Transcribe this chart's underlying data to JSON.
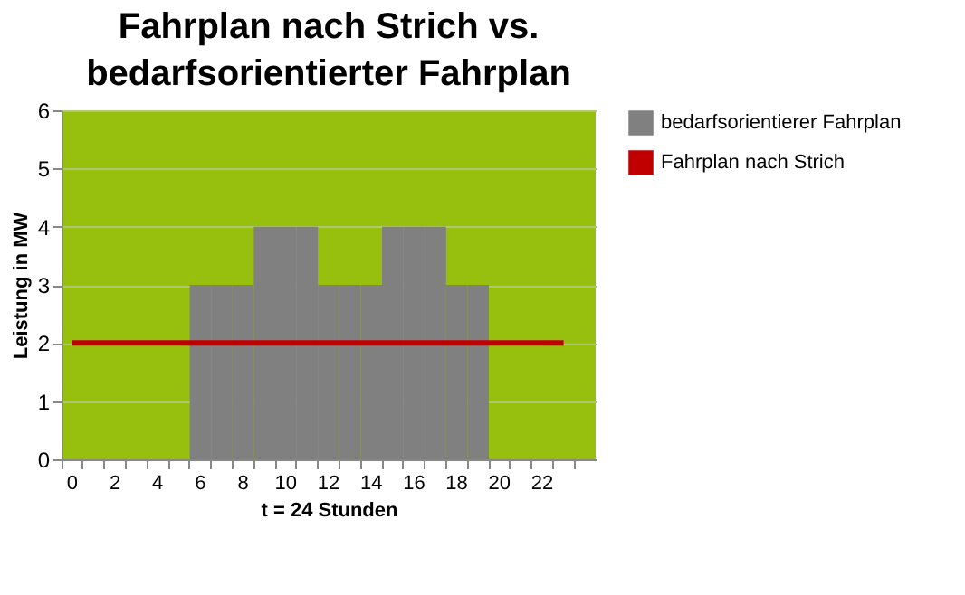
{
  "chart_data": {
    "type": "bar",
    "title": "Fahrplan nach Strich vs. bedarfsorientierter Fahrplan",
    "xlabel": "t = 24 Stunden",
    "ylabel": "Leistung in MW",
    "categories": [
      "0",
      null,
      "2",
      null,
      "4",
      null,
      "6",
      null,
      "8",
      null,
      "10",
      null,
      "12",
      null,
      "14",
      null,
      "16",
      null,
      "18",
      null,
      "20",
      null,
      "22",
      null,
      null
    ],
    "series": [
      {
        "name": "bedarfsorientierer Fahrplan",
        "color": "#808080",
        "values": [
          0,
          0,
          0,
          0,
          0,
          0,
          3,
          3,
          3,
          4,
          4,
          4,
          3,
          3,
          3,
          4,
          4,
          4,
          3,
          3,
          0,
          0,
          0,
          0,
          0
        ]
      },
      {
        "name": "Fahrplan nach Strich",
        "type": "line",
        "color": "#c00000",
        "values": [
          2,
          2,
          2,
          2,
          2,
          2,
          2,
          2,
          2,
          2,
          2,
          2,
          2,
          2,
          2,
          2,
          2,
          2,
          2,
          2,
          2,
          2,
          2,
          2,
          null
        ]
      }
    ],
    "ylim": [
      0,
      6
    ],
    "yticks": [
      0,
      1,
      2,
      3,
      4,
      5,
      6
    ],
    "grid": "y",
    "legend": "right"
  }
}
